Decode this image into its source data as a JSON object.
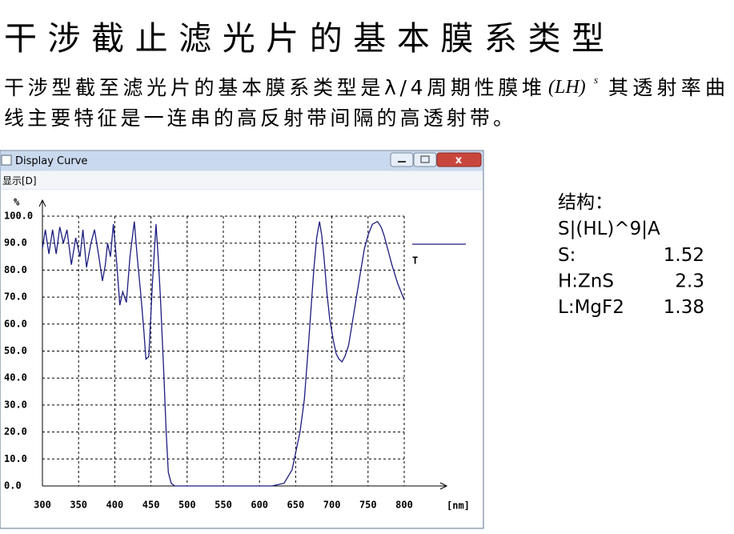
{
  "title": "干涉截止滤光片的基本膜系类型",
  "paragraph": {
    "text_before": "干涉型截至滤光片的基本膜系类型是λ/4周期性膜堆",
    "formula": "(LH)",
    "formula_superscript": "s",
    "text_after": [
      "其透射率曲",
      "线主要特征是一连串的高反射带间隔的高透射带。"
    ]
  },
  "window": {
    "title": "Display Curve",
    "menu": "显示[D]"
  },
  "structure": {
    "heading": "结构：",
    "stack": "S|(HL)^9|A",
    "materials": [
      {
        "label": "S:",
        "index": 1.52
      },
      {
        "label": "H:ZnS",
        "index": 2.3
      },
      {
        "label": "L:MgF2",
        "index": 1.38
      }
    ]
  },
  "chart_data": {
    "type": "line",
    "xlabel": "[nm]",
    "ylabel": "%",
    "x": [
      300,
      304,
      309,
      314,
      319,
      324,
      329,
      334,
      340,
      346,
      352,
      356,
      361,
      367,
      372,
      378,
      383,
      387,
      390,
      394,
      398,
      402,
      407,
      411,
      416,
      421,
      427,
      431,
      436,
      440,
      443,
      447,
      452,
      457,
      460,
      463,
      468,
      471,
      474,
      478,
      483,
      500,
      550,
      600,
      617,
      634,
      645,
      656,
      662,
      667,
      671,
      675,
      679,
      683,
      686,
      689,
      693,
      697,
      702,
      706,
      710,
      714,
      718,
      723,
      728,
      734,
      740,
      745,
      750,
      756,
      763,
      768,
      772,
      778,
      783,
      791,
      800
    ],
    "series": [
      {
        "name": "T",
        "color": "#1c1c80",
        "values": [
          88,
          95,
          86,
          95,
          86,
          96,
          90,
          95,
          82,
          92,
          85,
          95,
          81,
          90,
          95,
          85,
          76,
          82,
          90,
          85,
          97,
          85,
          67,
          72,
          68,
          85,
          98,
          85,
          71,
          58,
          47,
          48,
          75,
          97,
          85,
          70,
          40,
          20,
          5,
          1,
          0,
          0,
          0,
          0,
          0,
          1,
          6,
          20,
          32,
          50,
          65,
          80,
          92,
          98,
          93,
          85,
          72,
          62,
          54,
          49,
          47,
          46,
          48,
          52,
          60,
          70,
          80,
          88,
          93,
          97,
          98,
          96,
          93,
          87,
          82,
          75,
          69
        ]
      }
    ],
    "xlim": [
      300,
      800
    ],
    "ylim": [
      0,
      100
    ],
    "xticks": [
      300,
      350,
      400,
      450,
      500,
      550,
      600,
      650,
      700,
      750,
      800
    ],
    "yticks": [
      {
        "value": 0,
        "label": "0.0"
      },
      {
        "value": 10,
        "label": "10.0"
      },
      {
        "value": 20,
        "label": "20.0"
      },
      {
        "value": 30,
        "label": "30.0"
      },
      {
        "value": 40,
        "label": "40.0"
      },
      {
        "value": 50,
        "label": "50.0"
      },
      {
        "value": 60,
        "label": "60.0"
      },
      {
        "value": 70,
        "label": "70.0"
      },
      {
        "value": 80,
        "label": "80.0"
      },
      {
        "value": 90,
        "label": "90.0"
      },
      {
        "value": 100,
        "label": "100.0"
      }
    ],
    "grid": true,
    "legend": "right"
  }
}
